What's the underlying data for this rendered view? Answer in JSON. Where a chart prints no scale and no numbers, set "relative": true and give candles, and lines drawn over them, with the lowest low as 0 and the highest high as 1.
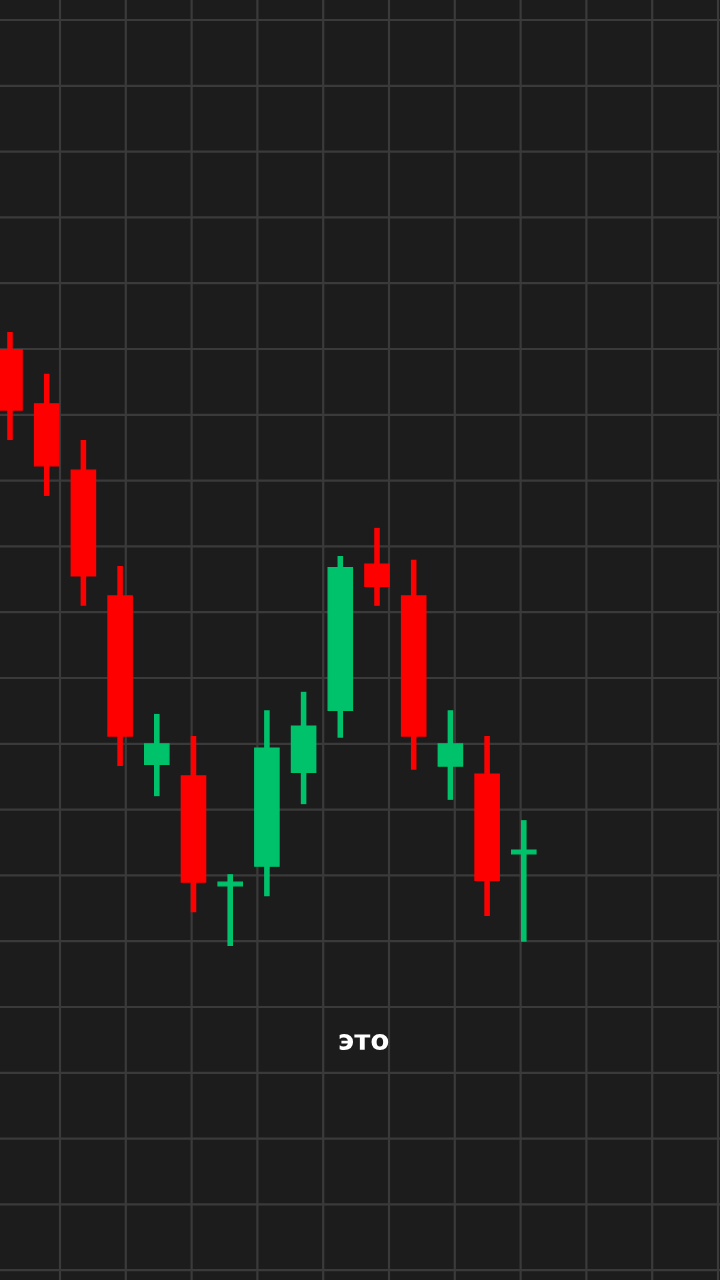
{
  "chart_data": {
    "type": "candlestick",
    "relative": true,
    "categories": [
      null,
      null,
      null,
      null,
      null,
      null,
      null,
      null,
      null,
      null,
      null,
      null,
      null,
      null,
      null
    ],
    "ohlc": [
      [
        0.971,
        1.0,
        0.824,
        0.873
      ],
      [
        0.883,
        0.932,
        0.733,
        0.782
      ],
      [
        0.775,
        0.824,
        0.554,
        0.603
      ],
      [
        0.57,
        0.619,
        0.293,
        0.342
      ],
      [
        0.296,
        0.378,
        0.244,
        0.329
      ],
      [
        0.277,
        0.342,
        0.055,
        0.104
      ],
      [
        0.098,
        0.117,
        0.0,
        0.104
      ],
      [
        0.13,
        0.384,
        0.081,
        0.322
      ],
      [
        0.283,
        0.414,
        0.231,
        0.358
      ],
      [
        0.384,
        0.635,
        0.339,
        0.616
      ],
      [
        0.622,
        0.681,
        0.554,
        0.586
      ],
      [
        0.57,
        0.629,
        0.287,
        0.342
      ],
      [
        0.293,
        0.384,
        0.238,
        0.329
      ],
      [
        0.28,
        0.342,
        0.049,
        0.107
      ],
      [
        0.15,
        0.205,
        0.007,
        0.156
      ]
    ],
    "colors": [
      "#ff0000",
      "#ff0000",
      "#ff0000",
      "#ff0000",
      "#00c26b",
      "#ff0000",
      "#00c26b",
      "#00c26b",
      "#00c26b",
      "#00c26b",
      "#ff0000",
      "#ff0000",
      "#00c26b",
      "#ff0000",
      "#00c26b"
    ],
    "grid": true,
    "annotations": [
      "это"
    ]
  }
}
